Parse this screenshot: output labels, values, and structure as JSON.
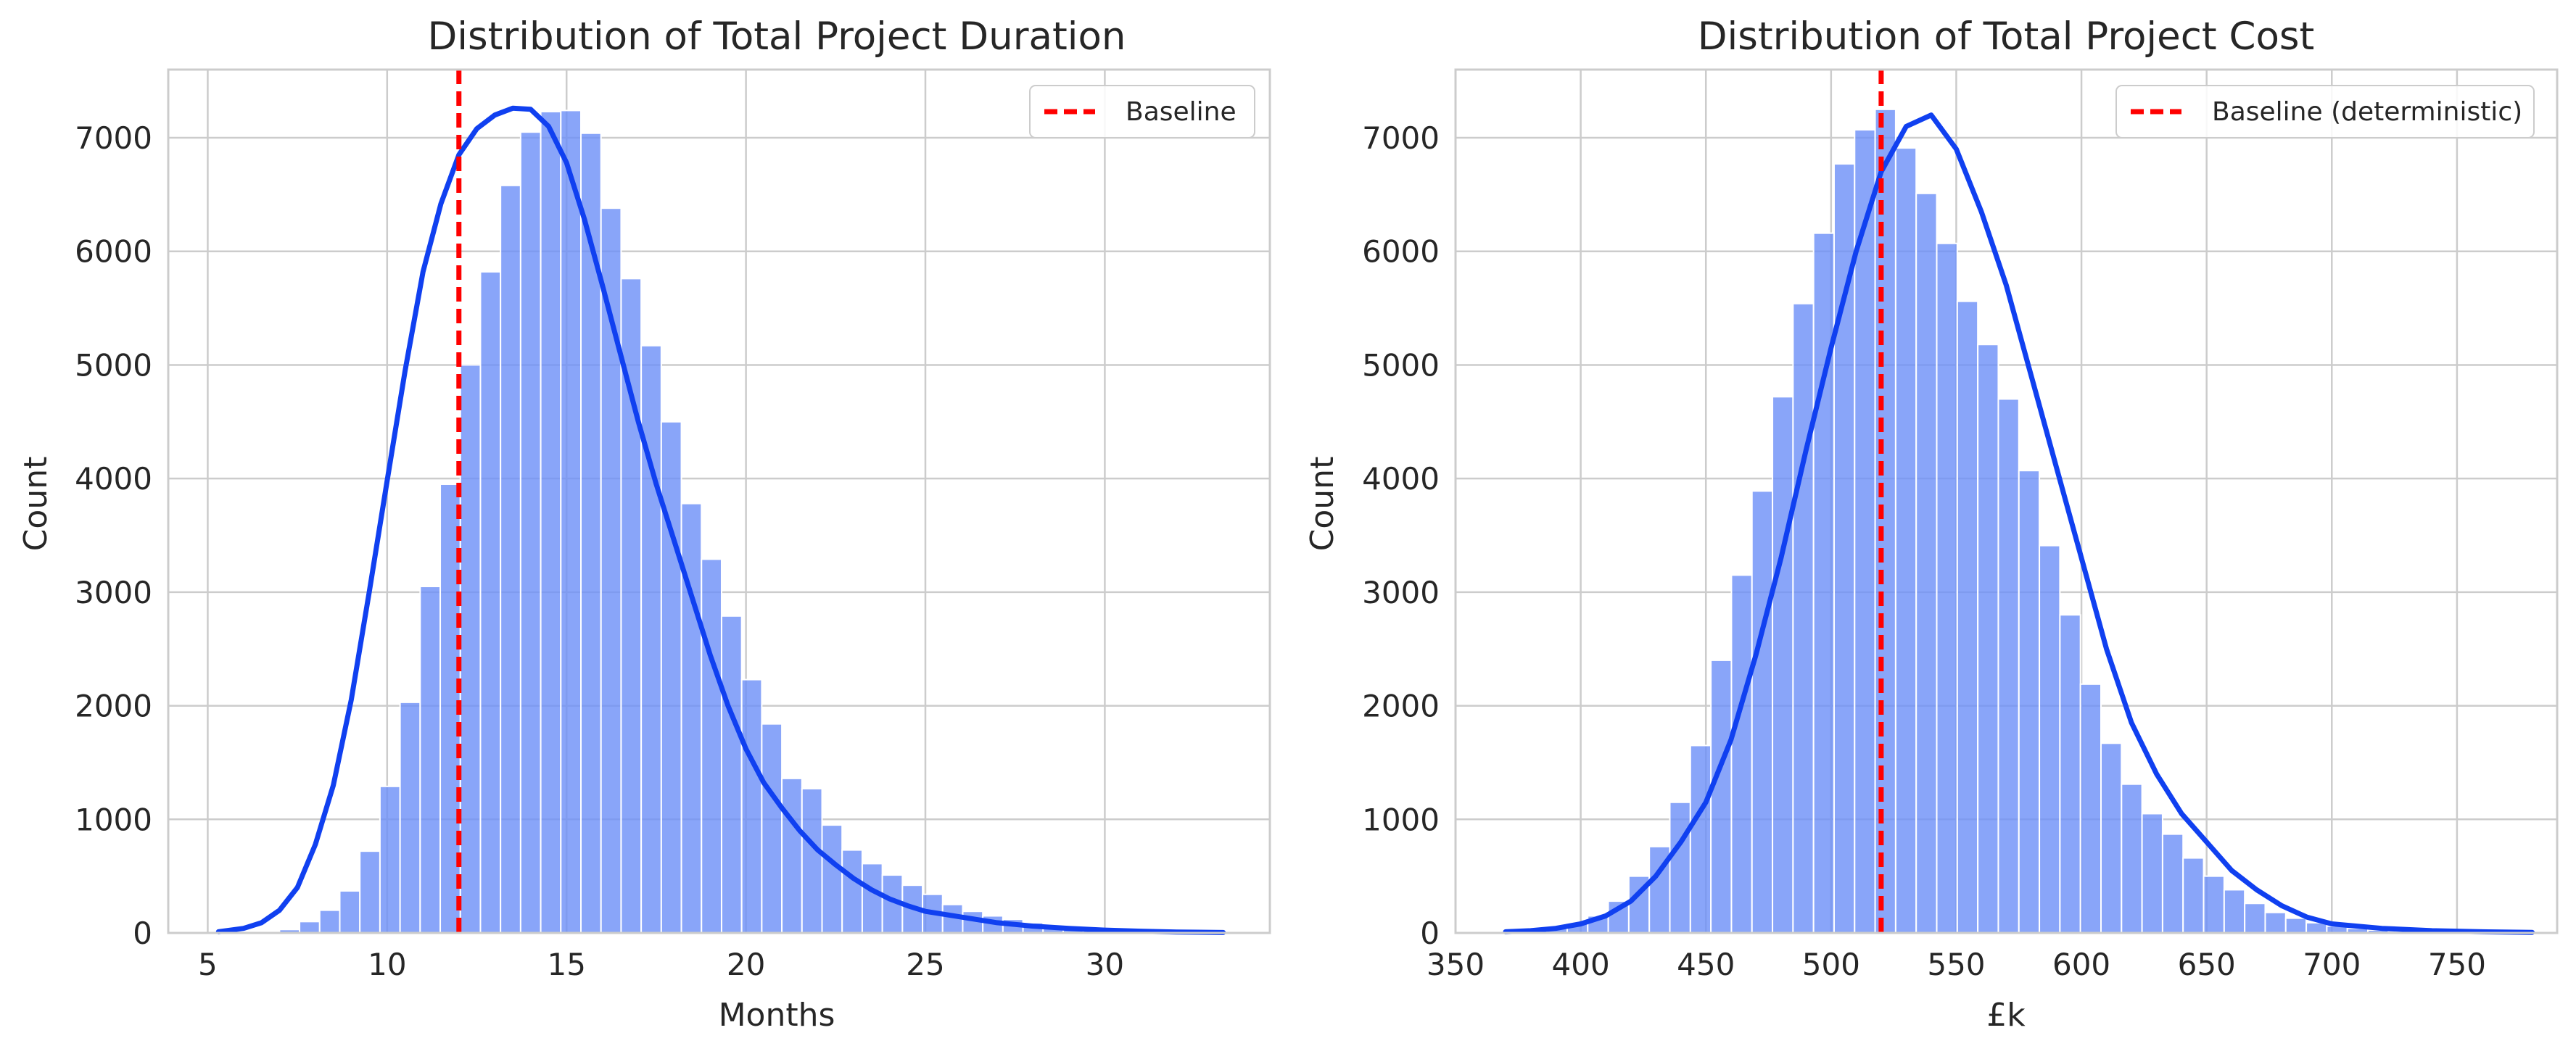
{
  "chart_data": [
    {
      "type": "histogram",
      "title": "Distribution of Total Project Duration",
      "xlabel": "Months",
      "ylabel": "Count",
      "xlim": [
        3.9,
        34.6
      ],
      "ylim": [
        0,
        7600
      ],
      "xticks": [
        5,
        10,
        15,
        20,
        25,
        30
      ],
      "yticks": [
        0,
        1000,
        2000,
        3000,
        4000,
        5000,
        6000,
        7000
      ],
      "grid": true,
      "bin_start": 5.32,
      "bin_width": 0.56,
      "counts": [
        0,
        0,
        10,
        30,
        100,
        200,
        370,
        720,
        1290,
        2030,
        3050,
        3950,
        5000,
        5820,
        6580,
        7050,
        7230,
        7240,
        7040,
        6380,
        5760,
        5170,
        4500,
        3780,
        3290,
        2790,
        2230,
        1840,
        1360,
        1270,
        950,
        730,
        610,
        510,
        420,
        340,
        250,
        190,
        150,
        120,
        90,
        70,
        50,
        40,
        30,
        20,
        15,
        12,
        10,
        8,
        6,
        5
      ],
      "kde": {
        "x": [
          5.3,
          6,
          6.5,
          7,
          7.5,
          8,
          8.5,
          9,
          9.5,
          10,
          10.5,
          11,
          11.5,
          12,
          12.5,
          13,
          13.5,
          14,
          14.5,
          15,
          15.5,
          16,
          16.5,
          17,
          17.5,
          18,
          18.5,
          19,
          19.5,
          20,
          20.5,
          21,
          21.5,
          22,
          22.5,
          23,
          23.5,
          24,
          24.5,
          25,
          26,
          27,
          28,
          29,
          30,
          31,
          32,
          33.3
        ],
        "y": [
          10,
          40,
          90,
          200,
          400,
          780,
          1300,
          2050,
          3000,
          3980,
          4950,
          5820,
          6420,
          6850,
          7080,
          7200,
          7260,
          7250,
          7100,
          6780,
          6280,
          5700,
          5100,
          4500,
          3950,
          3450,
          2950,
          2450,
          2000,
          1620,
          1320,
          1100,
          900,
          730,
          600,
          480,
          380,
          300,
          240,
          190,
          140,
          90,
          60,
          40,
          25,
          15,
          8,
          4
        ]
      },
      "baseline": {
        "x": 12,
        "label": "Baseline",
        "color": "#ff0000"
      },
      "legend_position": "upper-right",
      "bar_color": "#6b8ff7",
      "line_color": "#1040f0"
    },
    {
      "type": "histogram",
      "title": "Distribution of Total Project Cost",
      "xlabel": "£k",
      "ylabel": "Count",
      "xlim": [
        350,
        790
      ],
      "ylim": [
        0,
        7600
      ],
      "xticks": [
        350,
        400,
        450,
        500,
        550,
        600,
        650,
        700,
        750
      ],
      "yticks": [
        0,
        1000,
        2000,
        3000,
        4000,
        5000,
        6000,
        7000
      ],
      "grid": true,
      "bin_start": 370,
      "bin_width": 8.2,
      "counts": [
        10,
        20,
        40,
        80,
        150,
        280,
        500,
        760,
        1150,
        1650,
        2400,
        3150,
        3890,
        4720,
        5540,
        6160,
        6770,
        7070,
        7250,
        6910,
        6510,
        6070,
        5560,
        5180,
        4700,
        4070,
        3410,
        2800,
        2190,
        1670,
        1310,
        1050,
        870,
        660,
        500,
        380,
        260,
        180,
        130,
        90,
        60,
        40,
        25,
        15,
        10,
        6,
        4,
        3,
        2,
        1
      ],
      "kde": {
        "x": [
          370,
          380,
          390,
          400,
          410,
          420,
          430,
          440,
          450,
          460,
          470,
          480,
          490,
          500,
          510,
          520,
          530,
          540,
          550,
          560,
          570,
          580,
          590,
          600,
          610,
          620,
          630,
          640,
          650,
          660,
          670,
          680,
          690,
          700,
          720,
          740,
          760,
          780
        ],
        "y": [
          10,
          20,
          40,
          80,
          150,
          280,
          500,
          800,
          1150,
          1700,
          2450,
          3300,
          4250,
          5150,
          6000,
          6700,
          7100,
          7200,
          6900,
          6350,
          5700,
          4900,
          4100,
          3300,
          2500,
          1850,
          1400,
          1050,
          800,
          550,
          380,
          240,
          140,
          80,
          40,
          20,
          10,
          5
        ]
      },
      "baseline": {
        "x": 520,
        "label": "Baseline (deterministic)",
        "color": "#ff0000"
      },
      "legend_position": "upper-right",
      "bar_color": "#6b8ff7",
      "line_color": "#1040f0"
    }
  ]
}
